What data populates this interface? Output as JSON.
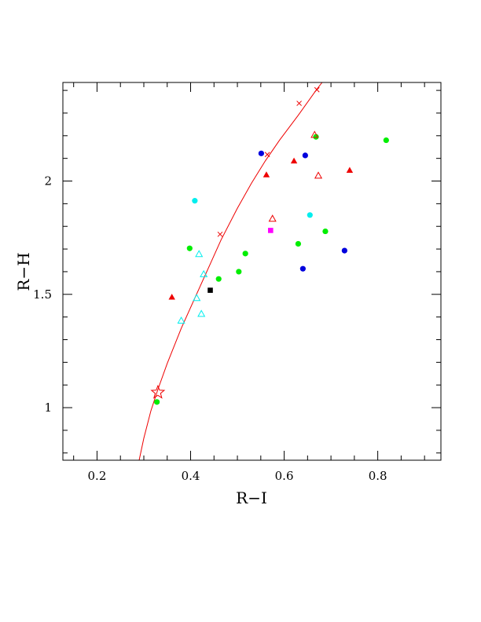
{
  "chart_data": {
    "type": "scatter",
    "xlabel": "R−I",
    "ylabel": "R−H",
    "xlim": [
      0.127,
      0.935
    ],
    "ylim": [
      0.768,
      2.435
    ],
    "x_ticks": [
      "0.2",
      "0.4",
      "0.6",
      "0.8"
    ],
    "y_ticks": [
      "1",
      "1.5",
      "2"
    ],
    "grid": false,
    "legend": "none",
    "colors": {
      "green": "#00ee00",
      "blue": "#0000dd",
      "red": "#ee0000",
      "cyan": "#00eeee",
      "magenta": "#ff00ff",
      "black": "#000000",
      "curve": "#ee0000"
    },
    "series": [
      {
        "marker": "filled-circle",
        "color": "green",
        "points": [
          [
            0.328,
            1.025
          ],
          [
            0.398,
            1.703
          ],
          [
            0.46,
            1.568
          ],
          [
            0.503,
            1.6
          ],
          [
            0.517,
            1.68
          ],
          [
            0.63,
            1.723
          ],
          [
            0.668,
            2.195
          ],
          [
            0.688,
            1.778
          ],
          [
            0.818,
            2.18
          ]
        ]
      },
      {
        "marker": "filled-circle",
        "color": "blue",
        "points": [
          [
            0.551,
            2.122
          ],
          [
            0.64,
            1.613
          ],
          [
            0.645,
            2.113
          ],
          [
            0.729,
            1.693
          ]
        ]
      },
      {
        "marker": "filled-circle",
        "color": "cyan",
        "points": [
          [
            0.409,
            1.913
          ],
          [
            0.655,
            1.85
          ]
        ]
      },
      {
        "marker": "filled-triangle",
        "color": "red",
        "points": [
          [
            0.36,
            1.487
          ],
          [
            0.562,
            2.027
          ],
          [
            0.621,
            2.088
          ],
          [
            0.74,
            2.047
          ]
        ]
      },
      {
        "marker": "open-triangle",
        "color": "red",
        "points": [
          [
            0.575,
            1.833
          ],
          [
            0.665,
            2.203
          ],
          [
            0.673,
            2.023
          ]
        ]
      },
      {
        "marker": "open-triangle",
        "color": "cyan",
        "points": [
          [
            0.38,
            1.383
          ],
          [
            0.413,
            1.483
          ],
          [
            0.418,
            1.677
          ],
          [
            0.423,
            1.413
          ],
          [
            0.428,
            1.588
          ]
        ]
      },
      {
        "marker": "filled-square",
        "color": "magenta",
        "points": [
          [
            0.571,
            1.782
          ]
        ]
      },
      {
        "marker": "filled-square",
        "color": "black",
        "points": [
          [
            0.442,
            1.518
          ]
        ]
      },
      {
        "marker": "open-star",
        "color": "red",
        "points": [
          [
            0.33,
            1.067
          ]
        ]
      }
    ],
    "curve": {
      "color": "curve",
      "points": [
        [
          0.29,
          0.768
        ],
        [
          0.3,
          0.865
        ],
        [
          0.315,
          0.985
        ],
        [
          0.33,
          1.08
        ],
        [
          0.35,
          1.195
        ],
        [
          0.38,
          1.35
        ],
        [
          0.41,
          1.488
        ],
        [
          0.44,
          1.625
        ],
        [
          0.465,
          1.74
        ],
        [
          0.5,
          1.88
        ],
        [
          0.53,
          1.99
        ],
        [
          0.56,
          2.09
        ],
        [
          0.59,
          2.18
        ],
        [
          0.63,
          2.29
        ],
        [
          0.668,
          2.4
        ],
        [
          0.681,
          2.435
        ]
      ],
      "cross_marks": [
        [
          0.463,
          1.765
        ],
        [
          0.564,
          2.117
        ],
        [
          0.632,
          2.343
        ],
        [
          0.67,
          2.403
        ]
      ]
    }
  }
}
